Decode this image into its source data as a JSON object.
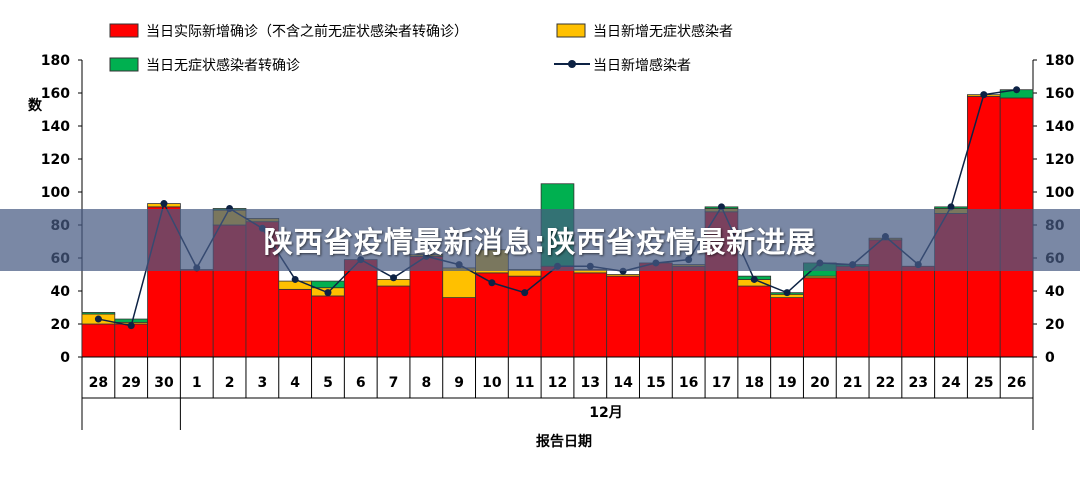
{
  "banner": {
    "title": "陕西省疫情最新消息:陕西省疫情最新进展"
  },
  "chart_data": {
    "type": "bar",
    "stacked": true,
    "xlabel": "报告日期",
    "x_group_label": "12月",
    "ylabel": "数",
    "ylim": [
      0,
      180
    ],
    "yticks": [
      0,
      20,
      40,
      60,
      80,
      100,
      120,
      140,
      160,
      180
    ],
    "categories": [
      "28",
      "29",
      "30",
      "1",
      "2",
      "3",
      "4",
      "5",
      "6",
      "7",
      "8",
      "9",
      "10",
      "11",
      "12",
      "13",
      "14",
      "15",
      "16",
      "17",
      "18",
      "19",
      "20",
      "21",
      "22",
      "23",
      "24",
      "25",
      "26"
    ],
    "series": [
      {
        "name": "当日实际新增确诊（不含之前无症状感染者转确诊）",
        "kind": "bar",
        "color": "#ff0000",
        "values": [
          20,
          20,
          91,
          53,
          80,
          82,
          41,
          37,
          59,
          43,
          61,
          36,
          51,
          49,
          55,
          51,
          49,
          57,
          55,
          88,
          43,
          36,
          48,
          55,
          71,
          55,
          87,
          158,
          157
        ]
      },
      {
        "name": "当日新增无症状感染者",
        "kind": "bar",
        "color": "#ffc000",
        "values": [
          6,
          1,
          2,
          0,
          9,
          2,
          5,
          5,
          0,
          4,
          1,
          18,
          14,
          4,
          0,
          2,
          1,
          0,
          1,
          2,
          4,
          2,
          1,
          0,
          1,
          0,
          3,
          1,
          0
        ]
      },
      {
        "name": "当日无症状感染者转确诊",
        "kind": "bar",
        "color": "#00b050",
        "values": [
          1,
          2,
          0,
          0,
          1,
          0,
          0,
          4,
          0,
          0,
          0,
          0,
          0,
          0,
          50,
          0,
          0,
          0,
          0,
          1,
          2,
          1,
          8,
          1,
          0,
          0,
          1,
          0,
          5
        ]
      },
      {
        "name": "当日新增感染者",
        "kind": "line",
        "color": "#0d2244",
        "values": [
          23,
          19,
          93,
          54,
          90,
          78,
          47,
          39,
          59,
          48,
          61,
          56,
          45,
          39,
          55,
          55,
          52,
          57,
          59,
          91,
          47,
          39,
          57,
          56,
          73,
          56,
          91,
          159,
          162
        ]
      }
    ],
    "legend": "top",
    "grid": false
  }
}
